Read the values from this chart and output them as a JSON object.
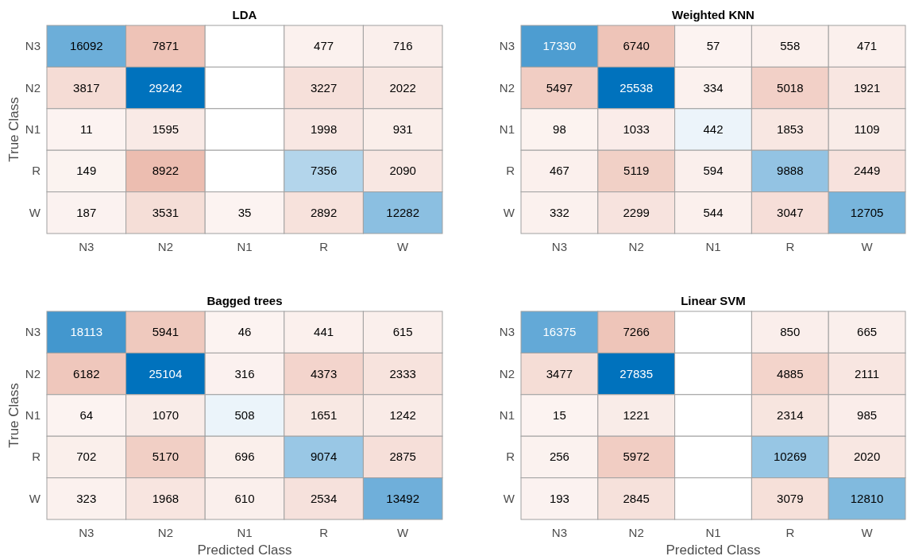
{
  "chart_data": [
    {
      "type": "heatmap",
      "data_labels": true,
      "title": "LDA",
      "ylabel": "True Class",
      "categories": [
        "N3",
        "N2",
        "N1",
        "R",
        "W"
      ],
      "y_categories": [
        "N3",
        "N2",
        "N1",
        "R",
        "W"
      ],
      "cells": [
        [
          16092,
          7871,
          null,
          477,
          716
        ],
        [
          3817,
          29242,
          null,
          3227,
          2022
        ],
        [
          11,
          1595,
          null,
          1998,
          931
        ],
        [
          149,
          8922,
          null,
          7356,
          2090
        ],
        [
          187,
          3531,
          35,
          2892,
          12282
        ]
      ]
    },
    {
      "type": "heatmap",
      "data_labels": true,
      "title": "Weighted KNN",
      "categories": [
        "N3",
        "N2",
        "N1",
        "R",
        "W"
      ],
      "y_categories": [
        "N3",
        "N2",
        "N1",
        "R",
        "W"
      ],
      "cells": [
        [
          17330,
          6740,
          57,
          558,
          471
        ],
        [
          5497,
          25538,
          334,
          5018,
          1921
        ],
        [
          98,
          1033,
          442,
          1853,
          1109
        ],
        [
          467,
          5119,
          594,
          9888,
          2449
        ],
        [
          332,
          2299,
          544,
          3047,
          12705
        ]
      ]
    },
    {
      "type": "heatmap",
      "data_labels": true,
      "title": "Bagged trees",
      "ylabel": "True Class",
      "xlabel": "Predicted Class",
      "categories": [
        "N3",
        "N2",
        "N1",
        "R",
        "W"
      ],
      "y_categories": [
        "N3",
        "N2",
        "N1",
        "R",
        "W"
      ],
      "cells": [
        [
          18113,
          5941,
          46,
          441,
          615
        ],
        [
          6182,
          25104,
          316,
          4373,
          2333
        ],
        [
          64,
          1070,
          508,
          1651,
          1242
        ],
        [
          702,
          5170,
          696,
          9074,
          2875
        ],
        [
          323,
          1968,
          610,
          2534,
          13492
        ]
      ]
    },
    {
      "type": "heatmap",
      "data_labels": true,
      "title": "Linear SVM",
      "xlabel": "Predicted Class",
      "categories": [
        "N3",
        "N2",
        "N1",
        "R",
        "W"
      ],
      "y_categories": [
        "N3",
        "N2",
        "N1",
        "R",
        "W"
      ],
      "cells": [
        [
          16375,
          7266,
          null,
          850,
          665
        ],
        [
          3477,
          27835,
          null,
          4885,
          2111
        ],
        [
          15,
          1221,
          null,
          2314,
          985
        ],
        [
          256,
          5972,
          null,
          10269,
          2020
        ],
        [
          193,
          2845,
          null,
          3079,
          12810
        ]
      ]
    }
  ]
}
